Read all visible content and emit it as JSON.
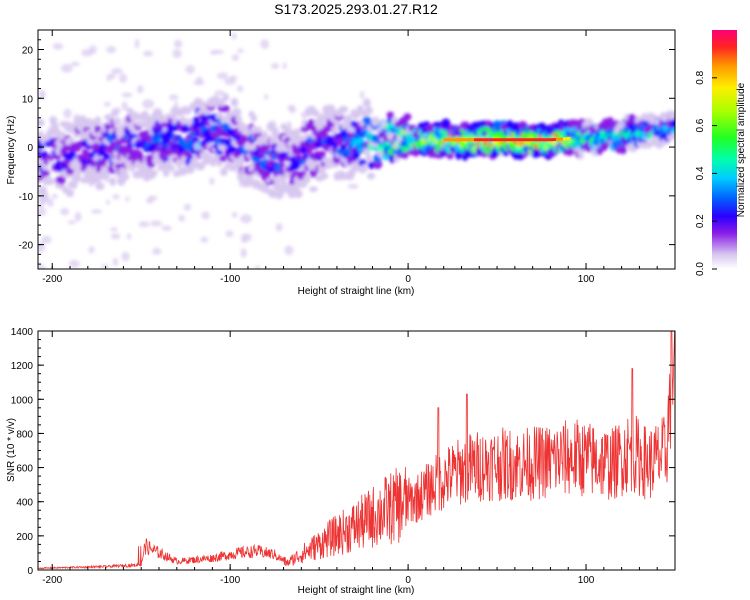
{
  "title": "S173.2025.293.01.27.R12",
  "chart_data": [
    {
      "type": "heatmap",
      "xlabel": "Height of straight line (km)",
      "ylabel": "Frequency (Hz)",
      "xlim": [
        -208,
        150
      ],
      "ylim": [
        -25,
        24
      ],
      "xticks": [
        -200,
        -100,
        0,
        100
      ],
      "yticks": [
        -20,
        -10,
        0,
        10,
        20
      ],
      "ridge": {
        "description_points_km": [
          -200,
          -180,
          -150,
          -120,
          -105,
          -95,
          -85,
          -75,
          -65,
          -55,
          -45,
          -35,
          -25,
          -15,
          0,
          20,
          40,
          60,
          80,
          100,
          120,
          140,
          150
        ],
        "center_hz": [
          -1.5,
          -1.0,
          0.5,
          2.5,
          3.0,
          0.5,
          -1.0,
          -3.5,
          -2.0,
          -0.5,
          0.0,
          0.5,
          1.0,
          1.5,
          1.5,
          1.5,
          1.5,
          1.5,
          1.5,
          2.0,
          2.5,
          3.5,
          4.0
        ],
        "peak_amplitude": [
          0.25,
          0.28,
          0.3,
          0.38,
          0.35,
          0.3,
          0.3,
          0.33,
          0.3,
          0.3,
          0.3,
          0.35,
          0.45,
          0.55,
          0.7,
          0.85,
          0.95,
          0.97,
          0.97,
          0.6,
          0.55,
          0.45,
          0.4
        ]
      },
      "colorbar": {
        "label": "Normalized spectral amplitude",
        "ticks": [
          "0.0",
          "0.2",
          "0.4",
          "0.6",
          "0.8"
        ],
        "tick_values": [
          0.0,
          0.2,
          0.4,
          0.6,
          0.8
        ],
        "range": [
          0,
          1
        ]
      }
    },
    {
      "type": "line",
      "xlabel": "Height of straight line (km)",
      "ylabel": "SNR (10 * v/v)",
      "xlim": [
        -208,
        150
      ],
      "ylim": [
        0,
        1400
      ],
      "xticks": [
        -200,
        -100,
        0,
        100
      ],
      "yticks": [
        0,
        200,
        400,
        600,
        800,
        1000,
        1200,
        1400
      ],
      "color": "#ee3333",
      "series": [
        {
          "name": "SNR",
          "x": [
            -208,
            -190,
            -170,
            -150,
            -148,
            -130,
            -110,
            -95,
            -85,
            -75,
            -68,
            -62,
            -55,
            -45,
            -35,
            -25,
            -15,
            -5,
            5,
            15,
            25,
            35,
            45,
            55,
            65,
            75,
            85,
            95,
            105,
            115,
            125,
            135,
            145,
            150
          ],
          "y": [
            10,
            15,
            20,
            30,
            140,
            50,
            70,
            100,
            110,
            90,
            40,
            80,
            120,
            180,
            230,
            280,
            340,
            380,
            420,
            500,
            560,
            600,
            620,
            620,
            620,
            630,
            650,
            660,
            640,
            620,
            700,
            620,
            680,
            1400
          ],
          "peaks": [
            {
              "x": 17,
              "y": 950
            },
            {
              "x": 33,
              "y": 1030
            },
            {
              "x": 126,
              "y": 1180
            },
            {
              "x": 148,
              "y": 1400
            }
          ]
        }
      ]
    }
  ]
}
